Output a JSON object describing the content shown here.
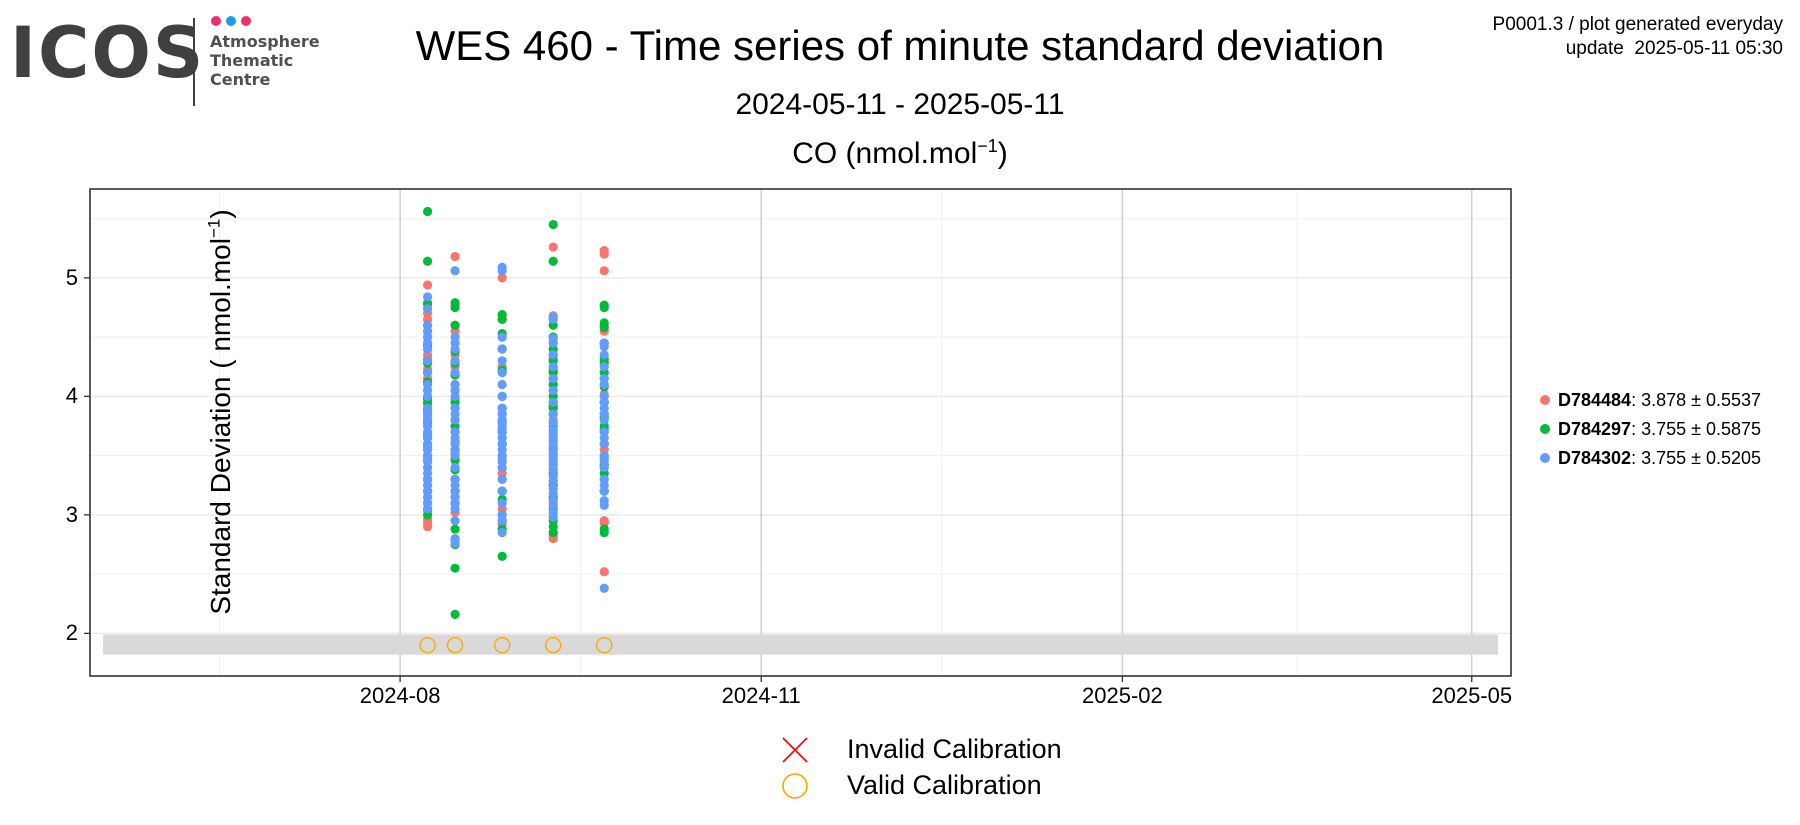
{
  "logo": {
    "word": "ICOS",
    "lines": [
      "Atmosphere",
      "Thematic",
      "Centre"
    ],
    "dot_colors": [
      "#e8336e",
      "#1d9ce8",
      "#e8336e"
    ]
  },
  "title": "WES 460 - Time series of minute standard deviation",
  "subtitle": "2024-05-11 - 2025-05-11",
  "corner": {
    "line1": "P0001.3 / plot generated everyday",
    "line2": "update  2025-05-11 05:30"
  },
  "chart_data": {
    "type": "scatter",
    "title": "CO (nmol.mol",
    "title_superscript": "−1",
    "title_suffix": ")",
    "ylabel": "Standard Deviation ( nmol.mol",
    "ylabel_superscript": "−1",
    "ylabel_suffix": ")",
    "xlim": [
      "2024-05-14",
      "2025-05-11"
    ],
    "ylim": [
      1.64,
      5.75
    ],
    "y_ticks": [
      "2",
      "3",
      "4",
      "5"
    ],
    "y_tick_values": [
      2,
      3,
      4,
      5
    ],
    "x_ticks": [
      "2024-08",
      "2024-11",
      "2025-02",
      "2025-05"
    ],
    "x_tick_dates": [
      "2024-08-01",
      "2024-11-01",
      "2025-02-01",
      "2025-05-01"
    ],
    "grid": true,
    "legend_position": "right",
    "calibration_band": [
      1.82,
      1.99
    ],
    "series": [
      {
        "name": "D784484",
        "stats": ": 3.878 ± 0.5537",
        "color": "#f8766d",
        "points": [
          [
            "2024-08-08",
            [
              4.94,
              4.79,
              4.7,
              4.65,
              4.55,
              4.4,
              4.32,
              4.23,
              4.2,
              4.15,
              4.05,
              4.0,
              3.95,
              3.9,
              3.82,
              3.75,
              3.68,
              3.6,
              3.5,
              3.4,
              3.3,
              3.2,
              3.1,
              3.05,
              2.96,
              2.93,
              2.9,
              3.58,
              4.35,
              3.25
            ]
          ],
          [
            "2024-08-15",
            [
              5.18,
              4.77,
              4.6,
              4.45,
              4.35,
              4.2,
              4.1,
              3.98,
              3.9,
              3.8,
              3.7,
              3.62,
              3.55,
              3.47,
              3.4,
              3.3,
              3.2,
              3.1,
              3.02,
              3.52,
              4.25,
              4.55
            ]
          ],
          [
            "2024-08-27",
            [
              5.0,
              4.68,
              4.4,
              4.25,
              4.0,
              3.85,
              3.7,
              3.6,
              3.48,
              3.35,
              3.2,
              3.05,
              2.92,
              4.65,
              3.8,
              3.4
            ]
          ],
          [
            "2024-09-09",
            [
              5.26,
              4.68,
              4.5,
              4.35,
              4.1,
              3.95,
              3.8,
              3.62,
              3.5,
              3.38,
              3.25,
              3.1,
              2.98,
              2.82,
              2.8,
              4.45,
              3.7,
              4.32
            ]
          ],
          [
            "2024-09-22",
            [
              5.23,
              5.2,
              5.06,
              4.55,
              4.45,
              4.3,
              4.15,
              4.02,
              3.95,
              3.85,
              3.7,
              3.55,
              3.4,
              3.3,
              3.2,
              2.95,
              2.93,
              2.52,
              4.6,
              3.6
            ]
          ]
        ]
      },
      {
        "name": "D784297",
        "stats": ": 3.755 ± 0.5875",
        "color": "#00ba38",
        "points": [
          [
            "2024-08-08",
            [
              5.56,
              5.14,
              4.78,
              4.6,
              4.43,
              4.28,
              4.12,
              3.98,
              3.88,
              3.78,
              3.66,
              3.55,
              3.46,
              3.3,
              3.2,
              3.1,
              3.04,
              3.0,
              3.94,
              4.5
            ]
          ],
          [
            "2024-08-15",
            [
              4.79,
              4.75,
              4.6,
              4.38,
              4.28,
              4.05,
              3.95,
              3.75,
              3.6,
              3.46,
              3.38,
              3.3,
              3.2,
              3.1,
              2.88,
              2.79,
              2.75,
              2.55,
              2.16,
              4.18
            ]
          ],
          [
            "2024-08-27",
            [
              4.69,
              4.65,
              4.53,
              4.4,
              4.22,
              4.0,
              3.9,
              3.78,
              3.7,
              3.6,
              3.45,
              3.3,
              3.2,
              3.13,
              3.0,
              2.95,
              2.88,
              2.65,
              3.65
            ]
          ],
          [
            "2024-09-09",
            [
              5.45,
              5.14,
              4.6,
              4.5,
              4.4,
              4.35,
              4.3,
              4.25,
              4.2,
              4.15,
              4.1,
              4.05,
              4.0,
              3.95,
              3.9,
              3.85,
              3.75,
              3.65,
              3.55,
              3.45,
              3.35,
              3.25,
              3.15,
              3.05,
              2.95,
              2.9,
              2.85,
              4.22,
              3.92
            ]
          ],
          [
            "2024-09-22",
            [
              4.77,
              4.75,
              4.62,
              4.58,
              4.45,
              4.32,
              4.2,
              4.08,
              3.95,
              3.82,
              3.72,
              3.6,
              3.48,
              3.42,
              3.35,
              3.2,
              2.88,
              2.85,
              4.28,
              3.75
            ]
          ]
        ]
      },
      {
        "name": "D784302",
        "stats": ": 3.755 ± 0.5205",
        "color": "#619cff",
        "points": [
          [
            "2024-08-08",
            [
              4.84,
              4.74,
              4.6,
              4.55,
              4.5,
              4.45,
              4.4,
              4.3,
              4.2,
              4.1,
              4.0,
              3.9,
              3.85,
              3.8,
              3.75,
              3.7,
              3.65,
              3.6,
              3.55,
              3.5,
              3.45,
              3.4,
              3.35,
              3.3,
              3.25,
              3.2,
              3.15,
              3.1,
              3.05,
              3.58,
              4.05,
              3.48,
              3.68
            ]
          ],
          [
            "2024-08-15",
            [
              5.06,
              4.5,
              4.45,
              4.4,
              4.3,
              4.2,
              4.1,
              4.0,
              3.9,
              3.8,
              3.7,
              3.6,
              3.55,
              3.5,
              3.4,
              3.3,
              3.25,
              3.2,
              3.15,
              3.1,
              3.05,
              2.95,
              2.8,
              2.76,
              3.85,
              3.65,
              4.05
            ]
          ],
          [
            "2024-08-27",
            [
              5.09,
              5.06,
              4.5,
              4.4,
              4.3,
              4.2,
              4.1,
              4.0,
              3.9,
              3.85,
              3.8,
              3.75,
              3.7,
              3.65,
              3.6,
              3.55,
              3.5,
              3.4,
              3.3,
              3.2,
              3.1,
              3.0,
              2.95,
              2.85,
              3.45,
              3.72
            ]
          ],
          [
            "2024-09-09",
            [
              4.67,
              4.65,
              4.49,
              4.45,
              4.35,
              4.25,
              4.15,
              4.05,
              3.95,
              3.85,
              3.78,
              3.72,
              3.68,
              3.62,
              3.58,
              3.52,
              3.48,
              3.42,
              3.38,
              3.32,
              3.28,
              3.22,
              3.18,
              3.12,
              3.08,
              3.02,
              2.98,
              3.55,
              3.65,
              3.45
            ]
          ],
          [
            "2024-09-22",
            [
              4.45,
              4.42,
              4.35,
              4.25,
              4.15,
              4.1,
              4.0,
              3.9,
              3.85,
              3.8,
              3.7,
              3.6,
              3.5,
              3.45,
              3.4,
              3.3,
              3.25,
              3.2,
              3.12,
              3.08,
              2.38,
              3.95,
              3.65
            ]
          ]
        ]
      }
    ],
    "calibrations": {
      "valid": {
        "label": "Valid Calibration",
        "color": "#ffa500",
        "dates": [
          "2024-08-08",
          "2024-08-15",
          "2024-08-27",
          "2024-09-09",
          "2024-09-22"
        ],
        "y": 1.9
      },
      "invalid": {
        "label": "Invalid Calibration",
        "color": "#ff0000",
        "dates": []
      }
    }
  }
}
